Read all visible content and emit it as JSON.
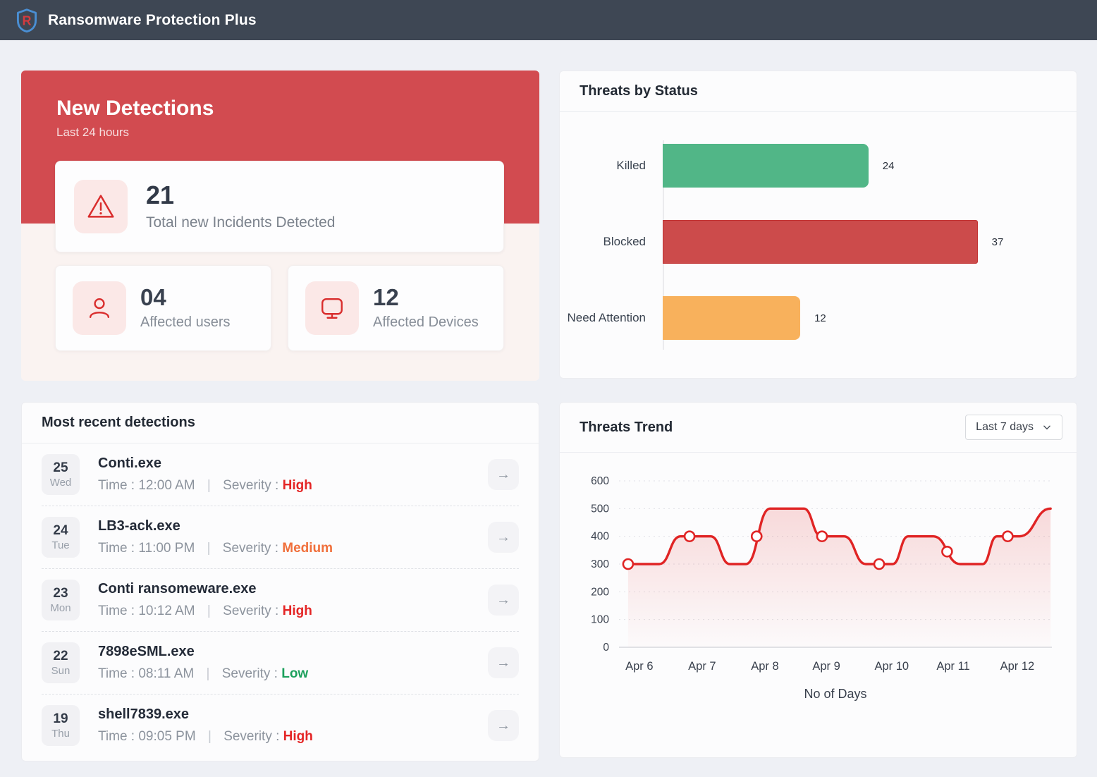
{
  "app": {
    "title": "Ransomware Protection Plus",
    "logo_icon": "shield-r-logo-icon"
  },
  "colors": {
    "topbar_bg": "#3e4754",
    "page_bg": "#eef0f5",
    "accent_red": "#d24b50",
    "icon_red": "#d92d2d",
    "trend_line_red": "#e02424"
  },
  "new_detections": {
    "title": "New Detections",
    "subtitle": "Last 24 hours",
    "total": {
      "icon": "warning-triangle-icon",
      "value": "21",
      "label": "Total new Incidents Detected"
    },
    "affected_users": {
      "icon": "user-icon",
      "value": "04",
      "label": "Affected users"
    },
    "affected_devices": {
      "icon": "monitor-icon",
      "value": "12",
      "label": "Affected Devices"
    }
  },
  "recent_detections": {
    "title": "Most recent detections",
    "time_prefix": "Time :",
    "severity_prefix": "Severity :",
    "separator": "|",
    "severity_colors": {
      "High": "#e42525",
      "Medium": "#f0703c",
      "Low": "#1ca05c"
    },
    "items": [
      {
        "date": "25",
        "day": "Wed",
        "file": "Conti.exe",
        "time": "12:00 AM",
        "severity": "High"
      },
      {
        "date": "24",
        "day": "Tue",
        "file": "LB3-ack.exe",
        "time": "11:00 PM",
        "severity": "Medium"
      },
      {
        "date": "23",
        "day": "Mon",
        "file": "Conti ransomeware.exe",
        "time": "10:12 AM",
        "severity": "High"
      },
      {
        "date": "22",
        "day": "Sun",
        "file": "7898eSML.exe",
        "time": "08:11 AM",
        "severity": "Low"
      },
      {
        "date": "19",
        "day": "Thu",
        "file": "shell7839.exe",
        "time": "09:05 PM",
        "severity": "High"
      }
    ]
  },
  "controls": {
    "trend_range_label": "Last 7 days",
    "trend_range_icon": "chevron-down-icon"
  },
  "chart_data": [
    {
      "type": "bar",
      "orientation": "horizontal",
      "title": "Threats by Status",
      "categories": [
        "Killed",
        "Blocked",
        "Need Attention"
      ],
      "values": [
        24,
        37,
        12
      ],
      "value_labels": [
        "24",
        "37",
        "12"
      ],
      "colors": [
        "#51b687",
        "#cc4b4b",
        "#f8b15c"
      ],
      "bar_border_colors": [
        "#51b687",
        "#c13333",
        "#f8b15c"
      ],
      "bar_width_pct": [
        52.2,
        79.9,
        34.9
      ],
      "xlabel": "",
      "ylabel": "",
      "grid": false,
      "legend": false
    },
    {
      "type": "line",
      "title": "Threats Trend",
      "x": [
        "Apr 6",
        "Apr 7",
        "Apr 8",
        "Apr 9",
        "Apr 10",
        "Apr 11",
        "Apr 12"
      ],
      "tick_pct": [
        4.7,
        19.2,
        33.7,
        47.9,
        63.0,
        77.2,
        92.0
      ],
      "marker_points": [
        [
          2.1,
          300
        ],
        [
          16.3,
          400
        ],
        [
          31.8,
          400
        ],
        [
          46.9,
          400
        ],
        [
          60.1,
          300
        ],
        [
          75.8,
          345
        ],
        [
          89.8,
          400
        ]
      ],
      "curve_points": [
        [
          2.1,
          300
        ],
        [
          9.3,
          300
        ],
        [
          14.2,
          400
        ],
        [
          21.2,
          400
        ],
        [
          25.6,
          300
        ],
        [
          29.3,
          300
        ],
        [
          34.9,
          500
        ],
        [
          42.7,
          500
        ],
        [
          46.7,
          400
        ],
        [
          52.0,
          400
        ],
        [
          57.0,
          300
        ],
        [
          63.2,
          300
        ],
        [
          66.8,
          400
        ],
        [
          72.6,
          400
        ],
        [
          78.8,
          300
        ],
        [
          84.0,
          300
        ],
        [
          87.3,
          400
        ],
        [
          92.5,
          400
        ],
        [
          99.7,
          500
        ]
      ],
      "ylim": [
        0,
        600
      ],
      "yticks": [
        0,
        100,
        200,
        300,
        400,
        500,
        600
      ],
      "xlabel": "No of Days",
      "line_color": "#e02424",
      "fill_color": "#e02424",
      "grid": "horizontal-dashed",
      "legend": false
    }
  ]
}
